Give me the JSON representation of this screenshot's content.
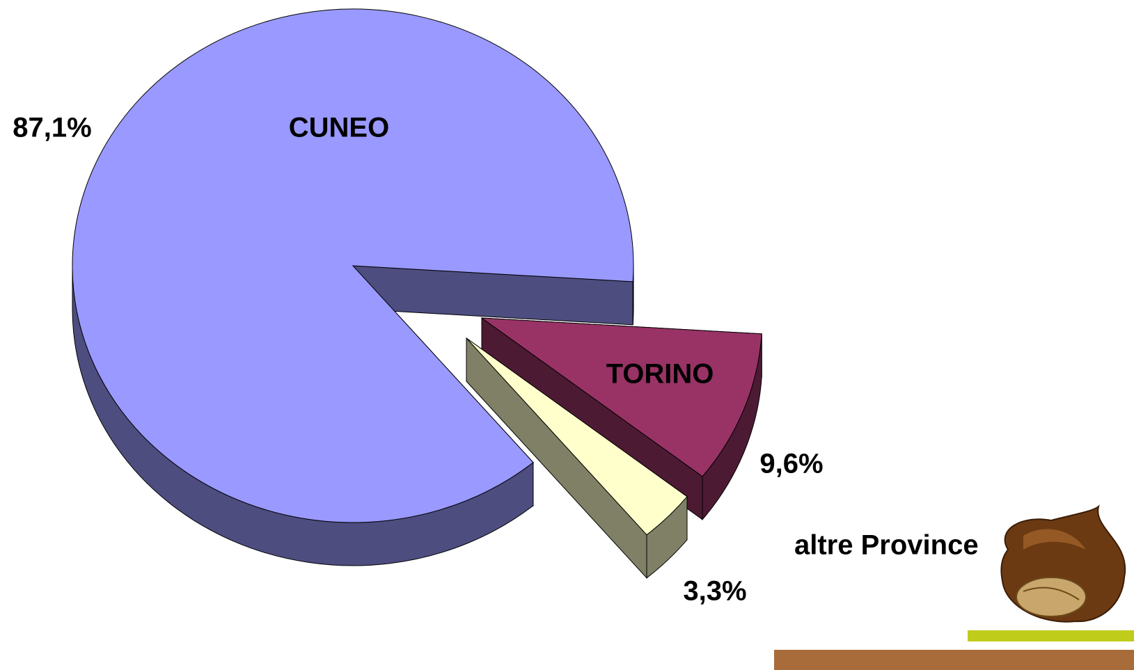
{
  "chart_data": {
    "type": "pie",
    "categories": [
      "CUNEO",
      "TORINO",
      "altre Province"
    ],
    "values": [
      87.1,
      9.6,
      3.3
    ],
    "value_labels": [
      "87,1%",
      "9,6%",
      "3,3%"
    ],
    "colors": [
      "#9999ff",
      "#993366",
      "#ffffcc"
    ]
  }
}
